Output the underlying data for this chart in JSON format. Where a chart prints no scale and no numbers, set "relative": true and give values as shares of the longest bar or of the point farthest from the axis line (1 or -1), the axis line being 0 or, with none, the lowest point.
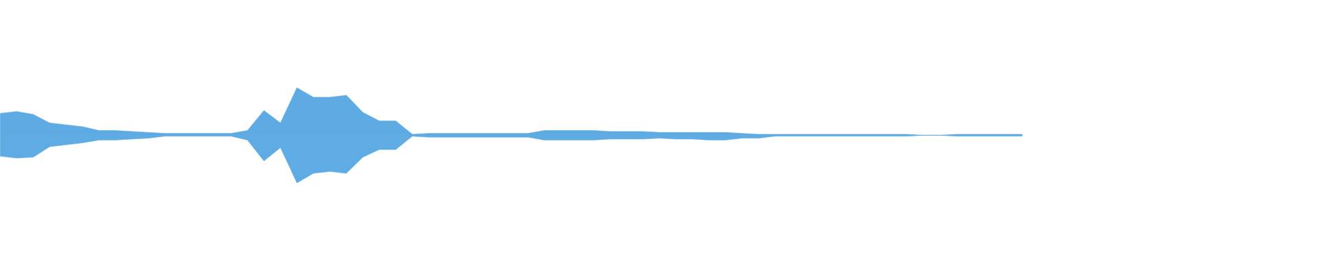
{
  "chart_data": {
    "type": "area",
    "relative": true,
    "categories": [
      null,
      null,
      null,
      null,
      null,
      null,
      null,
      null,
      null,
      null,
      null,
      null,
      null,
      null,
      null,
      null,
      null,
      null,
      null,
      null,
      null,
      null,
      null,
      null,
      null,
      null,
      null,
      null,
      null,
      null,
      null,
      null,
      null,
      null,
      null,
      null,
      null,
      null,
      null,
      null,
      null,
      null,
      null,
      null,
      null,
      null,
      null,
      null,
      null,
      null,
      null,
      null,
      null,
      null,
      null,
      null,
      null,
      null,
      null,
      null,
      null,
      null,
      null
    ],
    "series": [
      {
        "color": "#5dabe2",
        "values": [
          0.46,
          0.5,
          0.44,
          0.26,
          0.22,
          0.18,
          0.1,
          0.1,
          0.08,
          0.06,
          0.04,
          0.04,
          0.04,
          0.04,
          0.04,
          0.1,
          0.52,
          0.26,
          1,
          0.8,
          0.8,
          0.84,
          0.48,
          0.3,
          0.3,
          0.02,
          0.04,
          0.04,
          0.04,
          0.04,
          0.04,
          0.04,
          0.04,
          0.1,
          0.1,
          0.1,
          0.1,
          0.08,
          0.08,
          0.08,
          0.06,
          0.06,
          0.06,
          0.06,
          0.06,
          0.04,
          0.02,
          0.02,
          0.02,
          0.02,
          0.02,
          0.02,
          0.02,
          0.02,
          0.02,
          0.02,
          0,
          0,
          0.02,
          0.02,
          0.02,
          0.02,
          0.02
        ]
      },
      {
        "color": "#5eace3",
        "values": [
          -0.44,
          -0.48,
          -0.46,
          -0.24,
          -0.2,
          -0.16,
          -0.1,
          -0.1,
          -0.08,
          -0.06,
          -0.02,
          -0.02,
          -0.02,
          -0.02,
          -0.02,
          -0.1,
          -0.54,
          -0.26,
          -1,
          -0.8,
          -0.76,
          -0.8,
          -0.46,
          -0.3,
          -0.3,
          -0.02,
          -0.04,
          -0.04,
          -0.04,
          -0.04,
          -0.04,
          -0.04,
          -0.04,
          -0.1,
          -0.1,
          -0.1,
          -0.1,
          -0.08,
          -0.08,
          -0.08,
          -0.06,
          -0.08,
          -0.08,
          -0.1,
          -0.1,
          -0.06,
          -0.06,
          -0.02,
          -0.02,
          -0.02,
          -0.02,
          -0.02,
          -0.02,
          -0.02,
          -0.02,
          -0.02,
          0,
          0,
          -0.02,
          -0.02,
          -0.02,
          -0.02,
          -0.02
        ]
      }
    ]
  }
}
